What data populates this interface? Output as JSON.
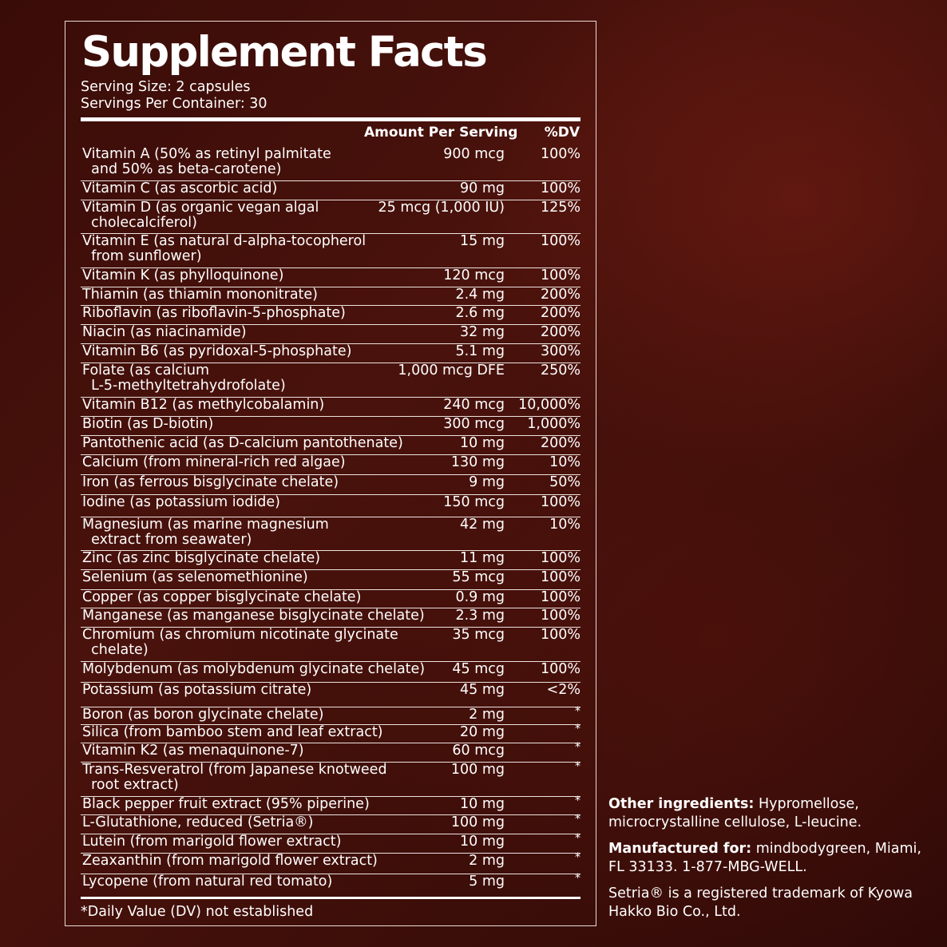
{
  "title": "Supplement Facts",
  "serving_size": "Serving Size: 2 capsules",
  "servings_per_container": "Servings Per Container: 30",
  "headers": {
    "amount": "Amount Per Serving",
    "dv": "%DV"
  },
  "rows": [
    {
      "name": "Vitamin A (50% as retinyl palmitate\n  and 50% as beta-carotene)",
      "amount": "900 mcg",
      "dv": "100%"
    },
    {
      "name": "Vitamin C (as ascorbic acid)",
      "amount": "90 mg",
      "dv": "100%"
    },
    {
      "name": "Vitamin D (as organic vegan algal\n  cholecalciferol)",
      "amount": "25 mcg (1,000 IU)",
      "dv": "125%"
    },
    {
      "name": "Vitamin E (as natural d-alpha-tocopherol\n  from sunflower)",
      "amount": "15 mg",
      "dv": "100%"
    },
    {
      "name": "Vitamin K (as phylloquinone)",
      "amount": "120 mcg",
      "dv": "100%"
    },
    {
      "name": "Thiamin (as thiamin mononitrate)",
      "amount": "2.4 mg",
      "dv": "200%"
    },
    {
      "name": "Riboflavin (as riboflavin-5-phosphate)",
      "amount": "2.6 mg",
      "dv": "200%"
    },
    {
      "name": "Niacin (as niacinamide)",
      "amount": "32 mg",
      "dv": "200%"
    },
    {
      "name": "Vitamin B6 (as pyridoxal-5-phosphate)",
      "amount": "5.1 mg",
      "dv": "300%"
    },
    {
      "name": "Folate (as calcium\n  L-5-methyltetrahydrofolate)",
      "amount": "1,000 mcg DFE",
      "dv": "250%"
    },
    {
      "name": "Vitamin B12 (as methylcobalamin)",
      "amount": "240 mcg",
      "dv": "10,000%"
    },
    {
      "name": "Biotin (as D-biotin)",
      "amount": "300 mcg",
      "dv": "1,000%"
    },
    {
      "name": "Pantothenic acid (as D-calcium pantothenate)",
      "amount": "10 mg",
      "dv": "200%"
    },
    {
      "name": "Calcium (from mineral-rich red algae)",
      "amount": "130 mg",
      "dv": "10%"
    },
    {
      "name": "Iron (as ferrous bisglycinate chelate)",
      "amount": "9 mg",
      "dv": "50%"
    },
    {
      "name": "Iodine (as potassium iodide)",
      "amount": "150 mcg",
      "dv": "100%"
    },
    {
      "name": "Magnesium (as marine magnesium\n  extract from seawater)",
      "amount": "42 mg",
      "dv": "10%"
    },
    {
      "name": "Zinc (as zinc bisglycinate chelate)",
      "amount": "11 mg",
      "dv": "100%"
    },
    {
      "name": "Selenium (as selenomethionine)",
      "amount": "55 mcg",
      "dv": "100%"
    },
    {
      "name": "Copper (as copper bisglycinate chelate)",
      "amount": "0.9 mg",
      "dv": "100%"
    },
    {
      "name": "Manganese (as manganese bisglycinate chelate)",
      "amount": "2.3 mg",
      "dv": "100%"
    },
    {
      "name": "Chromium (as chromium nicotinate glycinate\n  chelate)",
      "amount": "35 mcg",
      "dv": "100%"
    },
    {
      "name": "Molybdenum (as molybdenum glycinate chelate)",
      "amount": "45 mcg",
      "dv": "100%"
    },
    {
      "name": "Potassium (as potassium citrate)",
      "amount": "45 mg",
      "dv": "<2%"
    },
    {
      "name": "Boron (as boron glycinate chelate)",
      "amount": "2 mg",
      "dv": "*"
    },
    {
      "name": "Silica (from bamboo stem and leaf extract)",
      "amount": "20 mg",
      "dv": "*"
    },
    {
      "name": "Vitamin K2 (as menaquinone-7)",
      "amount": "60 mcg",
      "dv": "*"
    },
    {
      "name": "Trans-Resveratrol (from Japanese knotweed\n  root extract)",
      "amount": "100 mg",
      "dv": "*"
    },
    {
      "name": "Black pepper fruit extract (95% piperine)",
      "amount": "10 mg",
      "dv": "*"
    },
    {
      "name": "L-Glutathione, reduced (Setria®)",
      "amount": "100 mg",
      "dv": "*"
    },
    {
      "name": "Lutein (from marigold flower extract)",
      "amount": "10 mg",
      "dv": "*"
    },
    {
      "name": "Zeaxanthin (from marigold flower extract)",
      "amount": "2 mg",
      "dv": "*"
    },
    {
      "name": "Lycopene (from natural red tomato)",
      "amount": "5 mg",
      "dv": "*"
    }
  ],
  "footnote": "*Daily Value (DV) not established",
  "other_ingredients": {
    "label": "Other ingredients:",
    "text": " Hypromellose, microcrystalline cellulose, L-leucine."
  },
  "manufactured_for": {
    "label": "Manufactured for:",
    "text": " mindbodygreen, Miami, FL 33133. 1-877-MBG-WELL."
  },
  "trademark": "Setria® is a registered trademark of Kyowa Hakko Bio Co., Ltd."
}
